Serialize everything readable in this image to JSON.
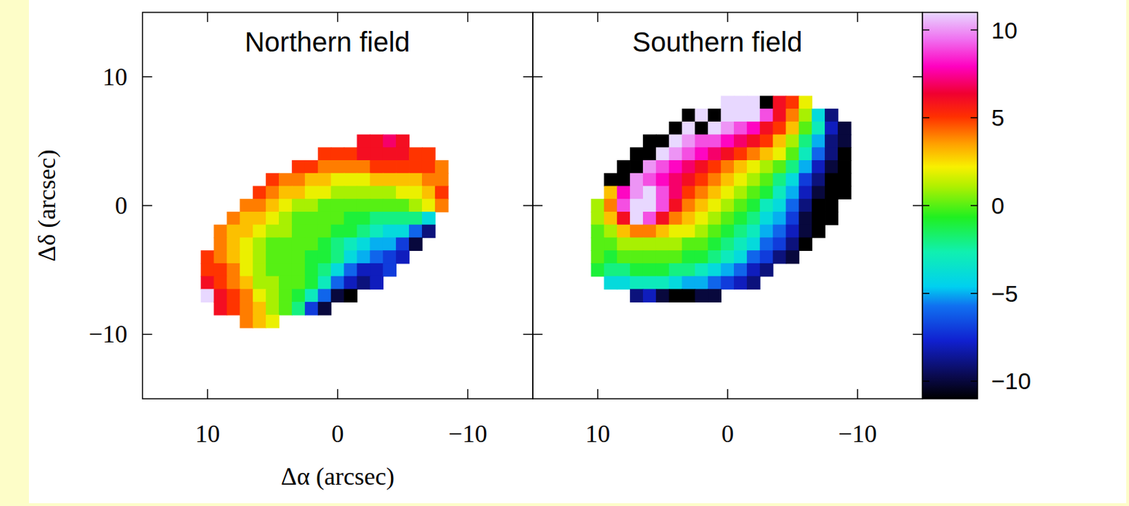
{
  "chart_data": {
    "type": "heatmap",
    "xlabel": "Δα (arcsec)",
    "ylabel": "Δδ (arcsec)",
    "xlim": [
      15,
      -15
    ],
    "ylim": [
      -15,
      15
    ],
    "xticks": [
      10,
      0,
      {
        "value": -10,
        "label": "−10"
      }
    ],
    "yticks": [
      {
        "value": -10,
        "label": "−10"
      },
      0,
      10
    ],
    "colorbar": {
      "range": [
        -11,
        11
      ],
      "ticks": [
        {
          "value": -10,
          "label": "−10"
        },
        {
          "value": -5,
          "label": "−5"
        },
        0,
        5,
        10
      ]
    },
    "panels": [
      {
        "title": "Northern field",
        "x": [
          10,
          9,
          8,
          7,
          6,
          5,
          4,
          3,
          2,
          1,
          0,
          -1,
          -2,
          -3,
          -4,
          -5,
          -6,
          -7,
          -8
        ],
        "y": [
          5,
          4,
          3,
          2,
          1,
          0,
          -1,
          -2,
          -3,
          -4,
          -5,
          -6,
          -7,
          -8,
          -9
        ],
        "cells": [
          [
            null,
            null,
            null,
            null,
            null,
            null,
            null,
            null,
            null,
            null,
            null,
            null,
            6,
            6,
            7,
            6,
            null,
            null,
            null
          ],
          [
            null,
            null,
            null,
            null,
            null,
            null,
            null,
            null,
            null,
            5,
            5,
            5,
            6,
            6,
            6,
            6,
            5,
            5,
            null
          ],
          [
            null,
            null,
            null,
            null,
            null,
            null,
            null,
            5,
            5,
            4,
            4,
            4,
            4,
            5,
            5,
            5,
            5,
            5,
            4
          ],
          [
            null,
            null,
            null,
            null,
            null,
            5,
            4,
            4,
            3,
            3,
            2,
            2,
            2,
            3,
            3,
            3,
            3,
            4,
            4
          ],
          [
            null,
            null,
            null,
            null,
            5,
            4,
            3,
            3,
            2,
            2,
            1,
            1,
            1,
            1,
            1,
            2,
            2,
            3,
            5
          ],
          [
            null,
            null,
            null,
            4,
            4,
            3,
            2,
            1,
            1,
            0,
            0,
            0,
            0,
            0,
            0,
            0,
            1,
            2,
            4
          ],
          [
            null,
            null,
            4,
            3,
            3,
            2,
            1,
            0,
            0,
            0,
            0,
            -1,
            -1,
            -2,
            -2,
            -2,
            -2,
            -4,
            null
          ],
          [
            null,
            4,
            3,
            3,
            2,
            1,
            1,
            0,
            0,
            0,
            -1,
            -1,
            -2,
            -3,
            -4,
            -4,
            -6,
            -9,
            null
          ],
          [
            null,
            4,
            3,
            2,
            1,
            0,
            0,
            0,
            0,
            -1,
            -2,
            -3,
            -4,
            -5,
            -5,
            -7,
            -10,
            null,
            null
          ],
          [
            5,
            4,
            3,
            2,
            1,
            0,
            0,
            0,
            -1,
            -1,
            -2,
            -4,
            -5,
            -6,
            -7,
            -8,
            null,
            null,
            null
          ],
          [
            5,
            5,
            4,
            2,
            1,
            0,
            0,
            0,
            -1,
            -2,
            -4,
            -6,
            -8,
            -8,
            -7,
            null,
            null,
            null,
            null
          ],
          [
            6,
            5,
            4,
            3,
            1,
            1,
            0,
            0,
            -1,
            -3,
            -6,
            -8,
            -9,
            -8,
            null,
            null,
            null,
            null,
            null
          ],
          [
            11,
            6,
            5,
            4,
            2,
            1,
            0,
            -1,
            -3,
            -6,
            -10,
            -11,
            null,
            null,
            null,
            null,
            null,
            null,
            null
          ],
          [
            null,
            6,
            5,
            4,
            3,
            1,
            0,
            -2,
            -7,
            -10,
            null,
            null,
            null,
            null,
            null,
            null,
            null,
            null,
            null
          ],
          [
            null,
            null,
            null,
            4,
            3,
            2,
            null,
            null,
            null,
            null,
            null,
            null,
            null,
            null,
            null,
            null,
            null,
            null,
            null
          ]
        ]
      },
      {
        "title": "Southern field",
        "x": [
          10,
          9,
          8,
          7,
          6,
          5,
          4,
          3,
          2,
          1,
          0,
          -1,
          -2,
          -3,
          -4,
          -5,
          -6,
          -7,
          -8,
          -9
        ],
        "y": [
          8,
          7,
          6,
          5,
          4,
          3,
          2,
          1,
          0,
          -1,
          -2,
          -3,
          -4,
          -5,
          -6,
          -7
        ],
        "cells": [
          [
            null,
            null,
            null,
            null,
            null,
            null,
            null,
            null,
            null,
            null,
            11,
            11,
            11,
            -11,
            6,
            5,
            2,
            null,
            null,
            null
          ],
          [
            null,
            null,
            null,
            null,
            null,
            null,
            null,
            -11,
            11,
            -11,
            11,
            11,
            11,
            9,
            6,
            4,
            1,
            -4,
            -9,
            null
          ],
          [
            null,
            null,
            null,
            null,
            null,
            null,
            -11,
            11,
            -11,
            11,
            10,
            9,
            8,
            6,
            5,
            3,
            0,
            -3,
            -8,
            -10
          ],
          [
            null,
            null,
            null,
            null,
            -11,
            -11,
            11,
            10,
            9,
            9,
            8,
            7,
            6,
            5,
            3,
            1,
            -2,
            -5,
            -9,
            -10
          ],
          [
            null,
            null,
            null,
            -11,
            -11,
            11,
            10,
            9,
            8,
            7,
            6,
            5,
            4,
            3,
            2,
            0,
            -3,
            -6,
            -9,
            -11
          ],
          [
            null,
            null,
            -11,
            -11,
            10,
            9,
            8,
            7,
            6,
            5,
            4,
            3,
            2,
            1,
            0,
            -2,
            -5,
            -8,
            -10,
            -11
          ],
          [
            null,
            -11,
            -11,
            10,
            9,
            8,
            7,
            6,
            5,
            4,
            3,
            2,
            1,
            0,
            -2,
            -4,
            -7,
            -9,
            -11,
            -11
          ],
          [
            null,
            3,
            8,
            10,
            11,
            9,
            7,
            5,
            4,
            3,
            2,
            1,
            0,
            -1,
            -3,
            -5,
            -8,
            -10,
            -11,
            -11
          ],
          [
            1,
            4,
            9,
            11,
            11,
            9,
            6,
            4,
            3,
            2,
            1,
            0,
            -1,
            -3,
            -4,
            -6,
            -9,
            -11,
            -11,
            null
          ],
          [
            1,
            3,
            6,
            11,
            9,
            6,
            4,
            3,
            2,
            1,
            0,
            -1,
            -2,
            -4,
            -5,
            -7,
            -10,
            -11,
            -11,
            null
          ],
          [
            0,
            1,
            3,
            4,
            4,
            3,
            2,
            2,
            1,
            0,
            -1,
            -2,
            -3,
            -5,
            -6,
            -8,
            -10,
            -11,
            null,
            null
          ],
          [
            0,
            0,
            1,
            1,
            1,
            1,
            1,
            0,
            0,
            -1,
            -2,
            -3,
            -4,
            -6,
            -7,
            -9,
            -11,
            null,
            null,
            null
          ],
          [
            0,
            -1,
            0,
            0,
            0,
            0,
            0,
            -1,
            -1,
            -2,
            -3,
            -4,
            -6,
            -7,
            -9,
            -10,
            null,
            null,
            null,
            null
          ],
          [
            -1,
            -2,
            -2,
            -1,
            -1,
            -1,
            -2,
            -2,
            -3,
            -4,
            -5,
            -6,
            -8,
            -9,
            null,
            null,
            null,
            null,
            null,
            null
          ],
          [
            null,
            -4,
            -4,
            -3,
            -3,
            -3,
            -4,
            -5,
            -5,
            -6,
            -7,
            -8,
            -9,
            null,
            null,
            null,
            null,
            null,
            null,
            null
          ],
          [
            null,
            null,
            null,
            -9,
            -8,
            -10,
            -11,
            -11,
            -10,
            -10,
            null,
            null,
            null,
            null,
            null,
            null,
            null,
            null,
            null,
            null
          ]
        ]
      }
    ]
  }
}
